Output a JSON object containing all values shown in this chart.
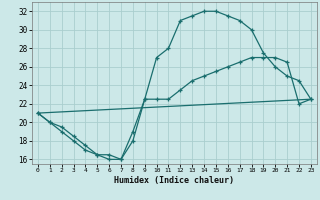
{
  "xlabel": "Humidex (Indice chaleur)",
  "background_color": "#cce8e8",
  "grid_color": "#aacece",
  "line_color": "#1a6e6e",
  "xlim": [
    -0.5,
    23.5
  ],
  "ylim": [
    15.5,
    33.0
  ],
  "xticks": [
    0,
    1,
    2,
    3,
    4,
    5,
    6,
    7,
    8,
    9,
    10,
    11,
    12,
    13,
    14,
    15,
    16,
    17,
    18,
    19,
    20,
    21,
    22,
    23
  ],
  "yticks": [
    16,
    18,
    20,
    22,
    24,
    26,
    28,
    30,
    32
  ],
  "line1_x": [
    0,
    1,
    2,
    3,
    4,
    5,
    6,
    7,
    8,
    9,
    10,
    11,
    12,
    13,
    14,
    15,
    16,
    17,
    18,
    19,
    20,
    21,
    22,
    23
  ],
  "line1_y": [
    21,
    20,
    19,
    18,
    17,
    16.5,
    16,
    16,
    18,
    22.5,
    27,
    28,
    31,
    31.5,
    32,
    32,
    31.5,
    31,
    30,
    27.5,
    26,
    25,
    24.5,
    22.5
  ],
  "line2_x": [
    0,
    1,
    2,
    3,
    4,
    5,
    6,
    7,
    8,
    9,
    10,
    11,
    12,
    13,
    14,
    15,
    16,
    17,
    18,
    19,
    20,
    21,
    22,
    23
  ],
  "line2_y": [
    21,
    20,
    19.5,
    18.5,
    17.5,
    16.5,
    16.5,
    16,
    19,
    22.5,
    22.5,
    22.5,
    23.5,
    24.5,
    25,
    25.5,
    26,
    26.5,
    27,
    27,
    27,
    26.5,
    22,
    22.5
  ],
  "line3_x": [
    0,
    23
  ],
  "line3_y": [
    21,
    22.5
  ]
}
